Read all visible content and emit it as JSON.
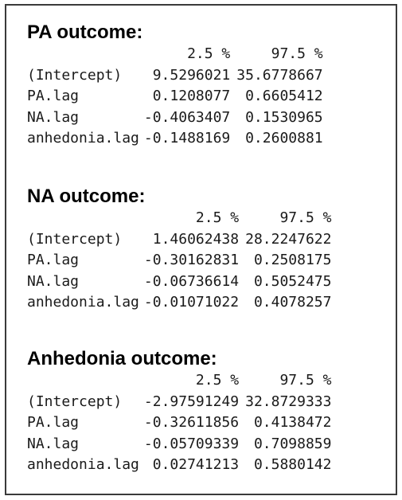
{
  "sections": [
    {
      "title": "PA outcome:",
      "columns": [
        "",
        "2.5 %",
        "97.5 %"
      ],
      "rows": [
        {
          "name": "(Intercept)",
          "lower": "9.5296021",
          "upper": "35.6778667"
        },
        {
          "name": "PA.lag",
          "lower": "0.1208077",
          "upper": "0.6605412"
        },
        {
          "name": "NA.lag",
          "lower": "-0.4063407",
          "upper": "0.1530965"
        },
        {
          "name": "anhedonia.lag",
          "lower": "-0.1488169",
          "upper": "0.2600881"
        }
      ]
    },
    {
      "title": "NA outcome:",
      "columns": [
        "",
        "2.5 %",
        "97.5 %"
      ],
      "rows": [
        {
          "name": "(Intercept)",
          "lower": "1.46062438",
          "upper": "28.2247622"
        },
        {
          "name": "PA.lag",
          "lower": "-0.30162831",
          "upper": "0.2508175"
        },
        {
          "name": "NA.lag",
          "lower": "-0.06736614",
          "upper": "0.5052475"
        },
        {
          "name": "anhedonia.lag",
          "lower": "-0.01071022",
          "upper": "0.4078257"
        }
      ]
    },
    {
      "title": "Anhedonia outcome:",
      "columns": [
        "",
        "2.5 %",
        "97.5 %"
      ],
      "rows": [
        {
          "name": "(Intercept)",
          "lower": "-2.97591249",
          "upper": "32.8729333"
        },
        {
          "name": "PA.lag",
          "lower": "-0.32611856",
          "upper": "0.4138472"
        },
        {
          "name": "NA.lag",
          "lower": "-0.05709339",
          "upper": "0.7098859"
        },
        {
          "name": "anhedonia.lag",
          "lower": "0.02741213",
          "upper": "0.5880142"
        }
      ]
    }
  ]
}
